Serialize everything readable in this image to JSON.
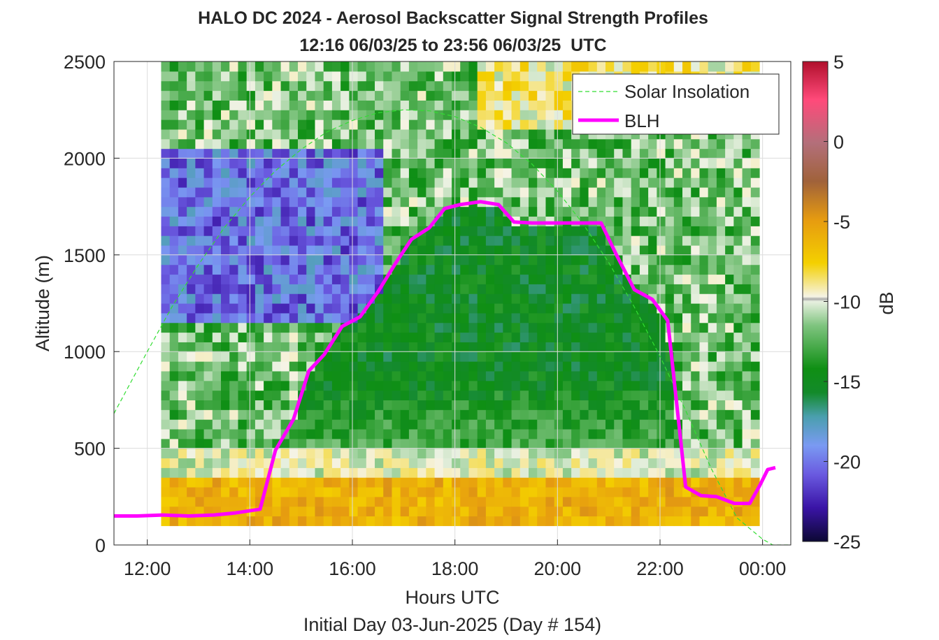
{
  "figure": {
    "title_line1": "HALO DC 2024 - Aerosol Backscatter Signal Strength Profiles",
    "title_line2": "12:16 06/03/25 to 23:56 06/03/25  UTC",
    "xlabel": "Hours UTC",
    "ylabel": "Altitude (m)",
    "footer": "Initial Day 03-Jun-2025 (Day # 154)",
    "colorbar_label": "dB"
  },
  "chart_data": {
    "type": "heatmap",
    "title": "HALO DC 2024 - Aerosol Backscatter Signal Strength Profiles",
    "subtitle": "12:16 06/03/25 to 23:56 06/03/25  UTC",
    "xlabel": "Hours UTC",
    "ylabel": "Altitude (m)",
    "xlim": [
      11.35,
      24.55
    ],
    "ylim": [
      0,
      2500
    ],
    "x_ticks": [
      12,
      14,
      16,
      18,
      20,
      22,
      24
    ],
    "x_tick_labels": [
      "12:00",
      "14:00",
      "16:00",
      "18:00",
      "20:00",
      "22:00",
      "00:00"
    ],
    "y_ticks": [
      0,
      500,
      1000,
      1500,
      2000,
      2500
    ],
    "y_tick_labels": [
      "0",
      "500",
      "1000",
      "1500",
      "2000",
      "2500"
    ],
    "grid": true,
    "legend_position": "top-right",
    "colorbar": {
      "label": "dB",
      "range": [
        -25,
        5
      ],
      "ticks": [
        5,
        0,
        -5,
        -10,
        -15,
        -20,
        -25
      ],
      "tick_labels": [
        "5",
        "0",
        "-5",
        "-10",
        "-15",
        "-20",
        "-25"
      ]
    },
    "heatmap": {
      "x_start": 12.27,
      "x_end": 23.93,
      "y_start": 100,
      "y_end": 2500,
      "description_units": "dB",
      "near_surface_db": -6,
      "boundary_layer_db": -15,
      "free_troposphere_db": -12,
      "clean_layer_db": -20
    },
    "series": [
      {
        "name": "Solar Insolation",
        "style": "dashed",
        "color": "#33dd33",
        "x": [
          11.35,
          12,
          12.5,
          13,
          13.5,
          14,
          14.5,
          15,
          15.5,
          16,
          16.5,
          17,
          17.5,
          18,
          18.5,
          19,
          19.5,
          20,
          20.5,
          21,
          21.5,
          22,
          22.5,
          23,
          23.5,
          24,
          24.2,
          24.35,
          24.55
        ],
        "y": [
          680,
          1000,
          1240,
          1450,
          1640,
          1800,
          1935,
          2045,
          2135,
          2195,
          2235,
          2250,
          2245,
          2215,
          2160,
          2080,
          1970,
          1830,
          1660,
          1460,
          1230,
          975,
          695,
          395,
          140,
          30,
          0,
          0,
          0
        ]
      },
      {
        "name": "BLH",
        "style": "solid",
        "color": "#ff00ff",
        "x": [
          11.35,
          11.8,
          12.3,
          12.8,
          13.3,
          13.7,
          14.2,
          14.5,
          14.85,
          15.15,
          15.45,
          15.8,
          16.15,
          16.5,
          16.85,
          17.15,
          17.5,
          17.8,
          18.1,
          18.5,
          18.85,
          19.15,
          19.5,
          19.85,
          20.15,
          20.5,
          20.85,
          21.15,
          21.5,
          21.85,
          22.15,
          22.5,
          22.8,
          23.1,
          23.45,
          23.75,
          23.95,
          24.1,
          24.25
        ],
        "y": [
          150,
          150,
          155,
          150,
          155,
          165,
          185,
          490,
          650,
          900,
          985,
          1130,
          1180,
          1310,
          1460,
          1580,
          1640,
          1740,
          1760,
          1775,
          1760,
          1670,
          1665,
          1665,
          1665,
          1665,
          1665,
          1500,
          1320,
          1270,
          1160,
          300,
          255,
          250,
          215,
          215,
          310,
          390,
          400
        ]
      }
    ]
  }
}
